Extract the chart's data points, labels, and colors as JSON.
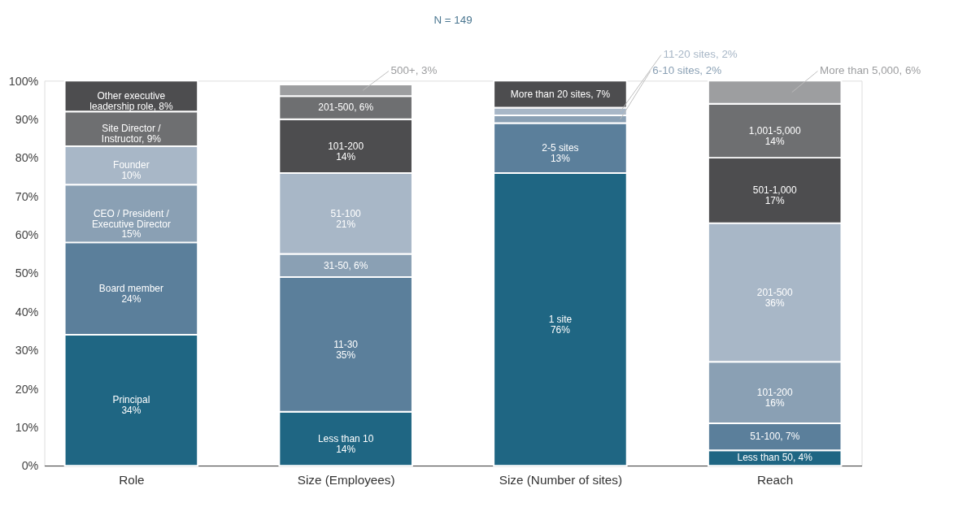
{
  "chart_data": {
    "type": "bar",
    "stacked": true,
    "subtitle": "N = 149",
    "categories": [
      "Role",
      "Size (Employees)",
      "Size (Number of sites)",
      "Reach"
    ],
    "ylim": [
      0,
      100
    ],
    "yticks": [
      {
        "value": 0,
        "label": "0%"
      },
      {
        "value": 10,
        "label": "10%"
      },
      {
        "value": 20,
        "label": "20%"
      },
      {
        "value": 30,
        "label": "30%"
      },
      {
        "value": 40,
        "label": "40%"
      },
      {
        "value": 50,
        "label": "50%"
      },
      {
        "value": 60,
        "label": "60%"
      },
      {
        "value": 70,
        "label": "70%"
      },
      {
        "value": 80,
        "label": "80%"
      },
      {
        "value": 90,
        "label": "90%"
      },
      {
        "value": 100,
        "label": "100%"
      }
    ],
    "grid": false,
    "series": [
      {
        "values": [
          34,
          14,
          76,
          4
        ],
        "colors": [
          "#1f6683",
          "#1f6683",
          "#1f6683",
          "#1f6683"
        ],
        "value_labels": [
          "Principal\n34%",
          "Less than 10\n14%",
          "1 site\n76%",
          "Less than 50, 4%"
        ]
      },
      {
        "values": [
          24,
          35,
          13,
          7
        ],
        "colors": [
          "#5b7f9b",
          "#5b7f9b",
          "#5b7f9b",
          "#5b7f9b"
        ],
        "value_labels": [
          "Board member\n24%",
          "11-30\n35%",
          "2-5 sites\n13%",
          "51-100, 7%"
        ]
      },
      {
        "values": [
          15,
          6,
          2,
          16
        ],
        "colors": [
          "#8aa0b4",
          "#8aa0b4",
          "#8aa0b4",
          "#8aa0b4"
        ],
        "value_labels": [
          "CEO / President /\nExecutive Director\n15%",
          "31-50, 6%",
          "6-10 sites, 2%",
          "101-200\n16%"
        ]
      },
      {
        "values": [
          10,
          21,
          2,
          36
        ],
        "colors": [
          "#a8b7c7",
          "#a8b7c7",
          "#a8b7c7",
          "#a8b7c7"
        ],
        "value_labels": [
          "Founder\n10%",
          "51-100\n21%",
          "11-20 sites, 2%",
          "201-500\n36%"
        ]
      },
      {
        "values": [
          9,
          14,
          7,
          17
        ],
        "colors": [
          "#6e6f71",
          "#4d4d4f",
          "#4d4d4f",
          "#4d4d4f"
        ],
        "value_labels": [
          "Site Director /\nInstructor, 9%",
          "101-200\n14%",
          "More than 20 sites, 7%",
          "501-1,000\n17%"
        ]
      },
      {
        "values": [
          8,
          6,
          null,
          14
        ],
        "colors": [
          "#4d4d4f",
          "#6e6f71",
          null,
          "#6e6f71"
        ],
        "value_labels": [
          "Other executive\nleadership role, 8%",
          "201-500, 6%",
          null,
          "1,001-5,000\n14%"
        ]
      },
      {
        "values": [
          null,
          3,
          null,
          6
        ],
        "colors": [
          null,
          "#9d9ea0",
          null,
          "#9d9ea0"
        ],
        "value_labels": [
          null,
          "500+, 3%",
          null,
          "More than 5,000, 6%"
        ]
      }
    ]
  }
}
